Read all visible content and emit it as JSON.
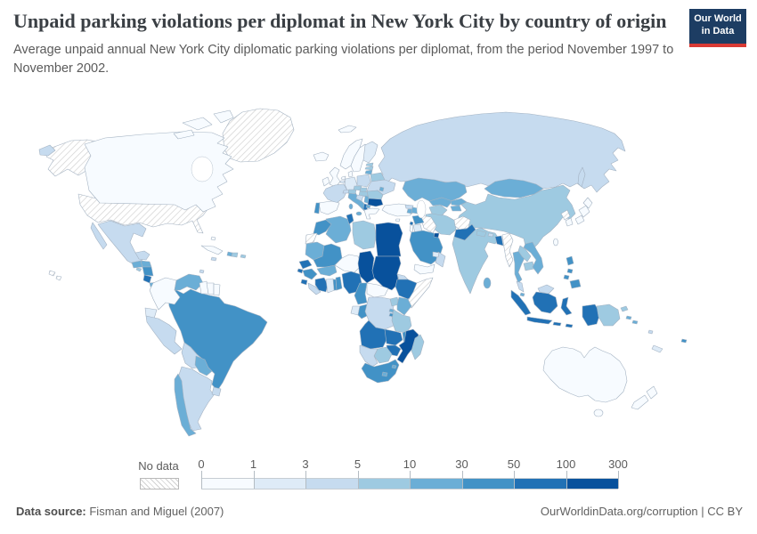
{
  "header": {
    "title": "Unpaid parking violations per diplomat in New York City by country of origin",
    "subtitle": "Average unpaid annual New York City diplomatic parking violations per diplomat, from the period November 1997 to November 2002."
  },
  "logo": {
    "line1": "Our World",
    "line2": "in Data",
    "bg_color": "#1d3d63",
    "accent_color": "#d93a34"
  },
  "legend": {
    "no_data_label": "No data",
    "tick_labels": [
      "0",
      "1",
      "3",
      "5",
      "10",
      "30",
      "50",
      "100",
      "300"
    ]
  },
  "footer": {
    "source_label": "Data source:",
    "source_value": " Fisman and Miguel (2007)",
    "right_text": "OurWorldinData.org/corruption | CC BY"
  },
  "chart_data": {
    "type": "choropleth",
    "title": "Unpaid parking violations per diplomat in New York City by country of origin",
    "unit": "average unpaid annual parking violations per diplomat, Nov 1997 - Nov 2002",
    "legend_position": "bottom",
    "bins": [
      {
        "label": "0-1",
        "color": "#f7fbff"
      },
      {
        "label": "1-3",
        "color": "#deebf7"
      },
      {
        "label": "3-5",
        "color": "#c6dbef"
      },
      {
        "label": "5-10",
        "color": "#9ecae1"
      },
      {
        "label": "10-30",
        "color": "#6baed6"
      },
      {
        "label": "30-50",
        "color": "#4292c6"
      },
      {
        "label": "50-100",
        "color": "#2171b5"
      },
      {
        "label": "100-300",
        "color": "#08519c"
      }
    ],
    "no_data": [
      "United States",
      "Greenland",
      "Western Sahara",
      "Somalia",
      "Iraq",
      "Afghanistan",
      "Myanmar",
      "North Korea"
    ],
    "countries": [
      {
        "name": "Canada",
        "bin": "0-1"
      },
      {
        "name": "Bahamas",
        "bin": "0-1"
      },
      {
        "name": "Cuba",
        "bin": "0-1"
      },
      {
        "name": "Colombia",
        "bin": "0-1"
      },
      {
        "name": "Guyana",
        "bin": "0-1"
      },
      {
        "name": "Suriname",
        "bin": "0-1"
      },
      {
        "name": "French Guiana",
        "bin": "0-1"
      },
      {
        "name": "Iceland",
        "bin": "0-1"
      },
      {
        "name": "Svalbard",
        "bin": "0-1"
      },
      {
        "name": "United Kingdom",
        "bin": "0-1"
      },
      {
        "name": "Ireland",
        "bin": "0-1"
      },
      {
        "name": "Norway",
        "bin": "0-1"
      },
      {
        "name": "Sweden",
        "bin": "0-1"
      },
      {
        "name": "Denmark",
        "bin": "0-1"
      },
      {
        "name": "Netherlands",
        "bin": "0-1"
      },
      {
        "name": "Spain",
        "bin": "0-1"
      },
      {
        "name": "Greece",
        "bin": "0-1"
      },
      {
        "name": "Turkey",
        "bin": "0-1"
      },
      {
        "name": "Cyprus",
        "bin": "0-1"
      },
      {
        "name": "Israel",
        "bin": "0-1"
      },
      {
        "name": "Yemen",
        "bin": "0-1"
      },
      {
        "name": "Japan",
        "bin": "0-1"
      },
      {
        "name": "South Korea",
        "bin": "0-1"
      },
      {
        "name": "Australia",
        "bin": "0-1"
      },
      {
        "name": "New Zealand",
        "bin": "0-1"
      },
      {
        "name": "Niger",
        "bin": "0-1"
      },
      {
        "name": "Central African Republic",
        "bin": "0-1"
      },
      {
        "name": "Taiwan",
        "bin": "0-1"
      },
      {
        "name": "Finland",
        "bin": "1-3"
      },
      {
        "name": "Germany",
        "bin": "1-3"
      },
      {
        "name": "Belgium",
        "bin": "1-3"
      },
      {
        "name": "Ecuador",
        "bin": "1-3"
      },
      {
        "name": "Jordan",
        "bin": "1-3"
      },
      {
        "name": "United Arab Emirates",
        "bin": "1-3"
      },
      {
        "name": "Ghana",
        "bin": "1-3"
      },
      {
        "name": "Gabon",
        "bin": "1-3"
      },
      {
        "name": "New Caledonia",
        "bin": "1-3"
      },
      {
        "name": "Russia",
        "bin": "3-5"
      },
      {
        "name": "France",
        "bin": "3-5"
      },
      {
        "name": "Poland",
        "bin": "3-5"
      },
      {
        "name": "Croatia",
        "bin": "3-5"
      },
      {
        "name": "Switzerland",
        "bin": "3-5"
      },
      {
        "name": "Georgia",
        "bin": "3-5"
      },
      {
        "name": "Ukraine",
        "bin": "3-5"
      },
      {
        "name": "Mexico",
        "bin": "3-5"
      },
      {
        "name": "Jamaica",
        "bin": "3-5"
      },
      {
        "name": "Trinidad and Tobago",
        "bin": "3-5"
      },
      {
        "name": "Peru",
        "bin": "3-5"
      },
      {
        "name": "Bolivia",
        "bin": "3-5"
      },
      {
        "name": "Argentina",
        "bin": "3-5"
      },
      {
        "name": "Uruguay",
        "bin": "3-5"
      },
      {
        "name": "Namibia",
        "bin": "3-5"
      },
      {
        "name": "Democratic Republic of Congo",
        "bin": "3-5"
      },
      {
        "name": "Liberia",
        "bin": "3-5"
      },
      {
        "name": "Eritrea",
        "bin": "3-5"
      },
      {
        "name": "Oman",
        "bin": "3-5"
      },
      {
        "name": "Malaysia",
        "bin": "3-5"
      },
      {
        "name": "Bhutan",
        "bin": "3-5"
      },
      {
        "name": "Vanuatu",
        "bin": "3-5"
      },
      {
        "name": "China",
        "bin": "5-10"
      },
      {
        "name": "India",
        "bin": "5-10"
      },
      {
        "name": "Nepal",
        "bin": "5-10"
      },
      {
        "name": "Iran",
        "bin": "5-10"
      },
      {
        "name": "Laos",
        "bin": "5-10"
      },
      {
        "name": "Cambodia",
        "bin": "5-10"
      },
      {
        "name": "Libya",
        "bin": "5-10"
      },
      {
        "name": "Botswana",
        "bin": "5-10"
      },
      {
        "name": "Madagascar",
        "bin": "5-10"
      },
      {
        "name": "Tanzania",
        "bin": "5-10"
      },
      {
        "name": "Uganda",
        "bin": "5-10"
      },
      {
        "name": "Austria",
        "bin": "5-10"
      },
      {
        "name": "Czech Republic",
        "bin": "5-10"
      },
      {
        "name": "Slovakia",
        "bin": "5-10"
      },
      {
        "name": "Hungary",
        "bin": "5-10"
      },
      {
        "name": "Romania",
        "bin": "5-10"
      },
      {
        "name": "Belarus",
        "bin": "5-10"
      },
      {
        "name": "Estonia",
        "bin": "5-10"
      },
      {
        "name": "Latvia",
        "bin": "5-10"
      },
      {
        "name": "Turkmenistan",
        "bin": "5-10"
      },
      {
        "name": "Dominican Republic",
        "bin": "5-10"
      },
      {
        "name": "Puerto Rico",
        "bin": "5-10"
      },
      {
        "name": "Papua New Guinea",
        "bin": "5-10"
      },
      {
        "name": "El Salvador",
        "bin": "5-10"
      },
      {
        "name": "Mongolia",
        "bin": "10-30"
      },
      {
        "name": "Kazakhstan",
        "bin": "10-30"
      },
      {
        "name": "Uzbekistan",
        "bin": "10-30"
      },
      {
        "name": "Kyrgyzstan",
        "bin": "10-30"
      },
      {
        "name": "Tajikistan",
        "bin": "10-30"
      },
      {
        "name": "Armenia",
        "bin": "10-30"
      },
      {
        "name": "Azerbaijan",
        "bin": "10-30"
      },
      {
        "name": "Moldova",
        "bin": "10-30"
      },
      {
        "name": "Serbia",
        "bin": "10-30"
      },
      {
        "name": "Macedonia",
        "bin": "10-30"
      },
      {
        "name": "Lithuania",
        "bin": "10-30"
      },
      {
        "name": "Italy",
        "bin": "10-30"
      },
      {
        "name": "Venezuela",
        "bin": "10-30"
      },
      {
        "name": "Paraguay",
        "bin": "10-30"
      },
      {
        "name": "Chile",
        "bin": "10-30"
      },
      {
        "name": "Guatemala",
        "bin": "10-30"
      },
      {
        "name": "Honduras",
        "bin": "10-30"
      },
      {
        "name": "Panama",
        "bin": "10-30"
      },
      {
        "name": "Haiti",
        "bin": "10-30"
      },
      {
        "name": "Sri Lanka",
        "bin": "10-30"
      },
      {
        "name": "Thailand",
        "bin": "10-30"
      },
      {
        "name": "Vietnam",
        "bin": "10-30"
      },
      {
        "name": "Kenya",
        "bin": "10-30"
      },
      {
        "name": "Burkina Faso",
        "bin": "10-30"
      },
      {
        "name": "Algeria",
        "bin": "10-30"
      },
      {
        "name": "Mauritania",
        "bin": "10-30"
      },
      {
        "name": "Lesotho",
        "bin": "10-30"
      },
      {
        "name": "Swaziland",
        "bin": "10-30"
      },
      {
        "name": "Rwanda",
        "bin": "10-30"
      },
      {
        "name": "Singapore",
        "bin": "10-30"
      },
      {
        "name": "Solomon Islands",
        "bin": "10-30"
      },
      {
        "name": "Brazil",
        "bin": "30-50"
      },
      {
        "name": "Nicaragua",
        "bin": "30-50"
      },
      {
        "name": "Morocco",
        "bin": "30-50"
      },
      {
        "name": "Mali",
        "bin": "30-50"
      },
      {
        "name": "Guinea",
        "bin": "30-50"
      },
      {
        "name": "Togo",
        "bin": "30-50"
      },
      {
        "name": "Benin",
        "bin": "30-50"
      },
      {
        "name": "Cameroon",
        "bin": "30-50"
      },
      {
        "name": "Congo",
        "bin": "30-50"
      },
      {
        "name": "Malawi",
        "bin": "30-50"
      },
      {
        "name": "South Africa",
        "bin": "30-50"
      },
      {
        "name": "Saudi Arabia",
        "bin": "30-50"
      },
      {
        "name": "Syria",
        "bin": "30-50"
      },
      {
        "name": "Philippines",
        "bin": "30-50"
      },
      {
        "name": "Burundi",
        "bin": "30-50"
      },
      {
        "name": "Portugal",
        "bin": "30-50"
      },
      {
        "name": "Fiji",
        "bin": "30-50"
      },
      {
        "name": "Costa Rica",
        "bin": "50-100"
      },
      {
        "name": "Senegal",
        "bin": "50-100"
      },
      {
        "name": "Guinea-Bissau",
        "bin": "50-100"
      },
      {
        "name": "Sierra Leone",
        "bin": "50-100"
      },
      {
        "name": "Cote d'Ivoire",
        "bin": "50-100"
      },
      {
        "name": "Nigeria",
        "bin": "50-100"
      },
      {
        "name": "Ethiopia",
        "bin": "50-100"
      },
      {
        "name": "Angola",
        "bin": "50-100"
      },
      {
        "name": "Zambia",
        "bin": "50-100"
      },
      {
        "name": "Zimbabwe",
        "bin": "50-100"
      },
      {
        "name": "Tunisia",
        "bin": "50-100"
      },
      {
        "name": "Albania",
        "bin": "50-100"
      },
      {
        "name": "Lebanon",
        "bin": "50-100"
      },
      {
        "name": "Pakistan",
        "bin": "50-100"
      },
      {
        "name": "Bangladesh",
        "bin": "50-100"
      },
      {
        "name": "Indonesia",
        "bin": "50-100"
      },
      {
        "name": "Egypt",
        "bin": "100-300"
      },
      {
        "name": "Sudan",
        "bin": "100-300"
      },
      {
        "name": "Chad",
        "bin": "100-300"
      },
      {
        "name": "Kuwait",
        "bin": "100-300"
      },
      {
        "name": "Bulgaria",
        "bin": "100-300"
      },
      {
        "name": "Mozambique",
        "bin": "100-300"
      }
    ]
  }
}
